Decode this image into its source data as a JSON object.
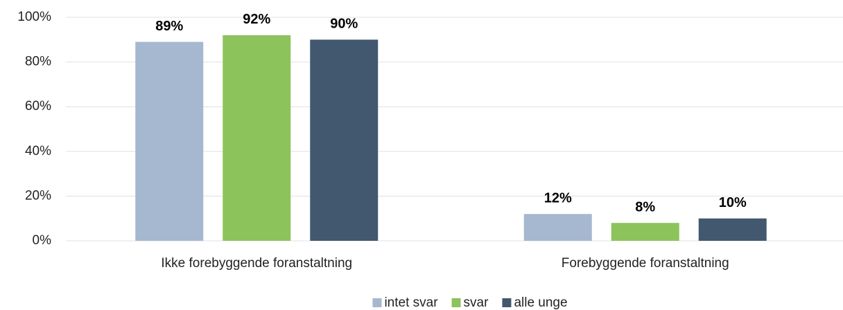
{
  "chart_data": {
    "type": "bar",
    "categories": [
      "Ikke forebyggende foranstaltning",
      "Forebyggende foranstaltning"
    ],
    "series": [
      {
        "name": "intet svar",
        "color": "#a5b8cf",
        "values": [
          89,
          12
        ],
        "value_labels": [
          "89%",
          "12%"
        ]
      },
      {
        "name": "svar",
        "color": "#8dc35b",
        "values": [
          92,
          8
        ],
        "value_labels": [
          "92%",
          "8%"
        ]
      },
      {
        "name": "alle unge",
        "color": "#42586e",
        "values": [
          90,
          10
        ],
        "value_labels": [
          "90%",
          "10%"
        ]
      }
    ],
    "ylim": [
      0,
      100
    ],
    "yticks": [
      {
        "value": 0,
        "label": "0%"
      },
      {
        "value": 20,
        "label": "20%"
      },
      {
        "value": 40,
        "label": "40%"
      },
      {
        "value": 60,
        "label": "60%"
      },
      {
        "value": 80,
        "label": "80%"
      },
      {
        "value": 100,
        "label": "100%"
      }
    ],
    "grid": true,
    "legend": "bottom"
  }
}
